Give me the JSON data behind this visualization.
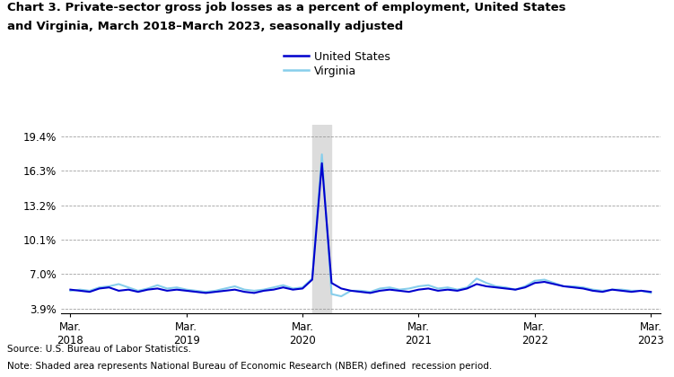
{
  "title_line1": "Chart 3. Private-sector gross job losses as a percent of employment, United States",
  "title_line2": "and Virginia, March 2018–March 2023, seasonally adjusted",
  "source": "Source: U.S. Bureau of Labor Statistics.",
  "note": "Note: Shaded area represents National Bureau of Economic Research (NBER) defined  recession period.",
  "yticks": [
    3.9,
    7.0,
    10.1,
    13.2,
    16.3,
    19.4
  ],
  "ytick_labels": [
    "3.9%",
    "7.0%",
    "10.1%",
    "13.2%",
    "16.3%",
    "19.4%"
  ],
  "ylim": [
    3.5,
    20.5
  ],
  "us_color": "#0000CD",
  "va_color": "#87CEEB",
  "recession_color": "#DCDCDC",
  "recession_start": 25,
  "recession_end": 27,
  "us_data": [
    5.6,
    5.5,
    5.4,
    5.7,
    5.8,
    5.5,
    5.6,
    5.4,
    5.6,
    5.7,
    5.5,
    5.6,
    5.5,
    5.4,
    5.3,
    5.4,
    5.5,
    5.6,
    5.4,
    5.3,
    5.5,
    5.6,
    5.8,
    5.6,
    5.7,
    6.5,
    17.0,
    6.2,
    5.7,
    5.5,
    5.4,
    5.3,
    5.5,
    5.6,
    5.5,
    5.4,
    5.6,
    5.7,
    5.5,
    5.6,
    5.5,
    5.7,
    6.1,
    5.9,
    5.8,
    5.7,
    5.6,
    5.8,
    6.2,
    6.3,
    6.1,
    5.9,
    5.8,
    5.7,
    5.5,
    5.4,
    5.6,
    5.5,
    5.4,
    5.5,
    5.4
  ],
  "va_data": [
    5.5,
    5.6,
    5.5,
    5.8,
    5.9,
    6.1,
    5.8,
    5.5,
    5.7,
    6.0,
    5.7,
    5.8,
    5.6,
    5.5,
    5.4,
    5.5,
    5.7,
    5.9,
    5.6,
    5.5,
    5.6,
    5.8,
    6.0,
    5.7,
    5.8,
    6.6,
    17.8,
    5.2,
    5.0,
    5.5,
    5.5,
    5.4,
    5.7,
    5.8,
    5.6,
    5.7,
    5.9,
    6.0,
    5.7,
    5.8,
    5.6,
    5.8,
    6.6,
    6.2,
    5.9,
    5.8,
    5.6,
    5.9,
    6.4,
    6.5,
    6.2,
    5.9,
    5.9,
    5.8,
    5.6,
    5.5,
    5.6,
    5.6,
    5.5,
    5.5,
    5.3
  ],
  "xtick_positions": [
    0,
    12,
    24,
    36,
    48,
    60
  ],
  "xtick_labels": [
    "Mar.\n2018",
    "Mar.\n2019",
    "Mar.\n2020",
    "Mar.\n2021",
    "Mar.\n2022",
    "Mar.\n2023"
  ],
  "legend_labels": [
    "United States",
    "Virginia"
  ],
  "legend_colors": [
    "#0000CD",
    "#87CEEB"
  ]
}
